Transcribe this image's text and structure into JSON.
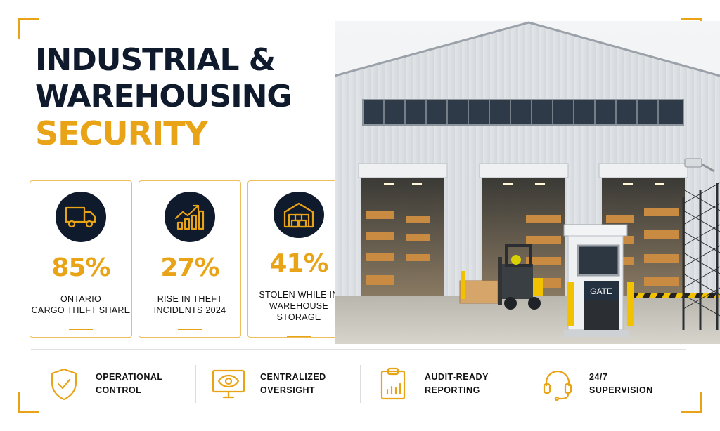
{
  "title": {
    "line1": "INDUSTRIAL &",
    "line2": "WAREHOUSING",
    "line3": "SECURITY"
  },
  "stats": [
    {
      "icon": "truck-icon",
      "value": "85%",
      "label_line1": "ONTARIO",
      "label_line2": "CARGO THEFT SHARE"
    },
    {
      "icon": "rising-chart-icon",
      "value": "27%",
      "label_line1": "RISE IN THEFT",
      "label_line2": "INCIDENTS 2024"
    },
    {
      "icon": "warehouse-boxes-icon",
      "value": "41%",
      "label_line1": "STOLEN WHILE IN",
      "label_line2": "WAREHOUSE STORAGE"
    }
  ],
  "photo": {
    "gate_sign": "GATE"
  },
  "features": [
    {
      "icon": "shield-check-icon",
      "line1": "OPERATIONAL",
      "line2": "CONTROL"
    },
    {
      "icon": "monitor-eye-icon",
      "line1": "CENTRALIZED",
      "line2": "OVERSIGHT"
    },
    {
      "icon": "clipboard-chart-icon",
      "line1": "AUDIT-READY",
      "line2": "REPORTING"
    },
    {
      "icon": "headset-icon",
      "line1": "24/7",
      "line2": "SUPERVISION"
    }
  ],
  "colors": {
    "navy": "#0f1b2d",
    "accent": "#e8a317"
  }
}
